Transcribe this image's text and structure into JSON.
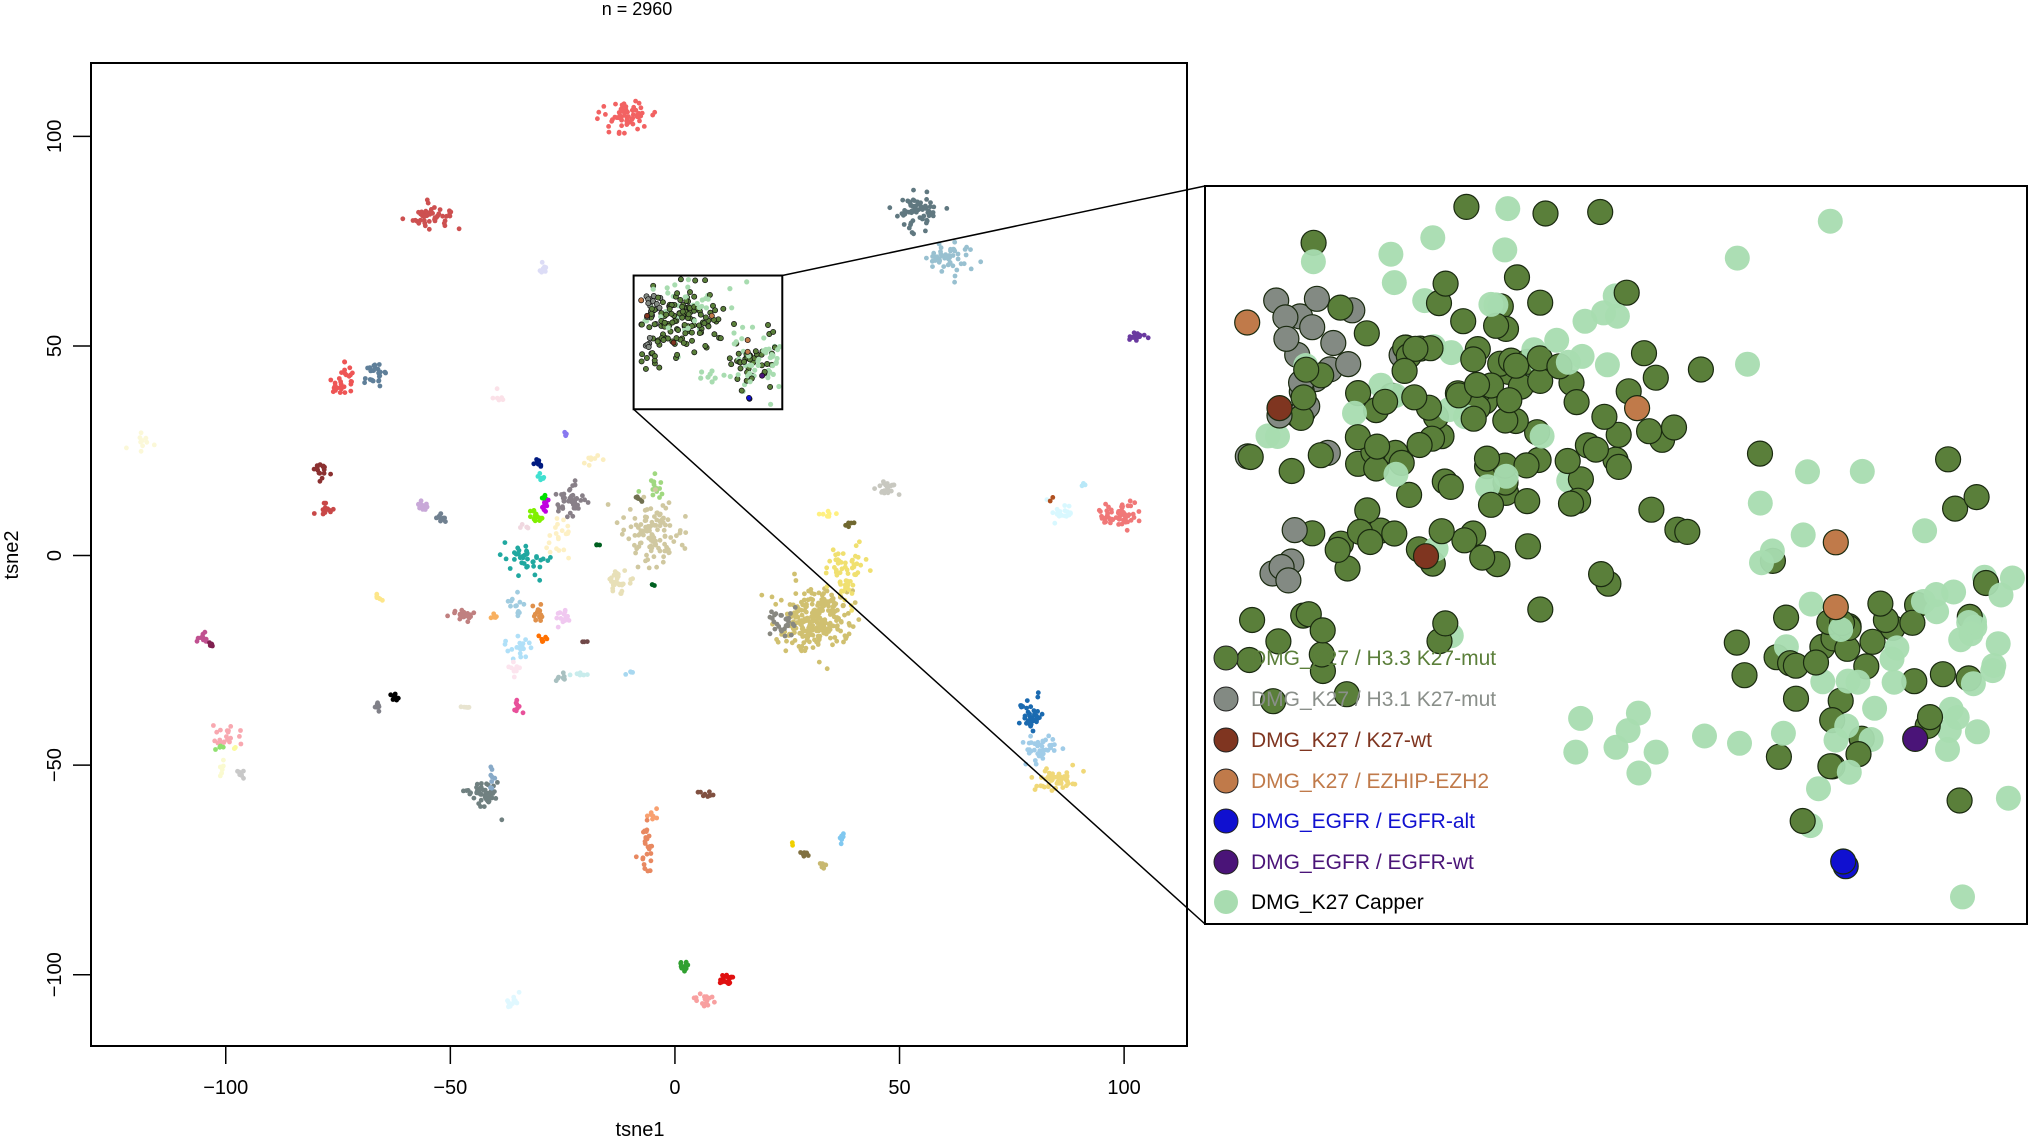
{
  "chart_data": {
    "type": "scatter",
    "title": "n = 2960",
    "xlabel": "tsne1",
    "ylabel": "tsne2",
    "xlim": [
      -130,
      114
    ],
    "ylim": [
      -117,
      117.5
    ],
    "xticks": [
      -100,
      -50,
      0,
      50,
      100
    ],
    "yticks": [
      -100,
      -50,
      0,
      50,
      100
    ],
    "grid": false,
    "clusters": [
      {
        "x": -11,
        "y": 104,
        "sx": 3,
        "sy": 2,
        "n": 60,
        "color": "#f26262"
      },
      {
        "x": -55,
        "y": 81,
        "sx": 2.4,
        "sy": 1.6,
        "n": 50,
        "color": "#cd5050"
      },
      {
        "x": -29,
        "y": 69,
        "sx": 0.8,
        "sy": 0.8,
        "n": 8,
        "color": "#dcdcf6"
      },
      {
        "x": -74,
        "y": 42,
        "sx": 1.5,
        "sy": 3,
        "n": 30,
        "color": "#ee5555"
      },
      {
        "x": -67,
        "y": 43,
        "sx": 1.3,
        "sy": 1.2,
        "n": 25,
        "color": "#5f7f99"
      },
      {
        "x": -39,
        "y": 38,
        "sx": 0.7,
        "sy": 1,
        "n": 6,
        "color": "#fbe1e8"
      },
      {
        "x": -119,
        "y": 27,
        "sx": 1.2,
        "sy": 1.2,
        "n": 10,
        "color": "#fbf8d8"
      },
      {
        "x": -79,
        "y": 20,
        "sx": 0.9,
        "sy": 0.9,
        "n": 15,
        "color": "#8b3030"
      },
      {
        "x": -78,
        "y": 11,
        "sx": 1,
        "sy": 0.8,
        "n": 15,
        "color": "#c84848"
      },
      {
        "x": -56,
        "y": 12,
        "sx": 1,
        "sy": 0.7,
        "n": 12,
        "color": "#c8a8d8"
      },
      {
        "x": -52,
        "y": 9,
        "sx": 0.7,
        "sy": 0.6,
        "n": 10,
        "color": "#708090"
      },
      {
        "x": -25,
        "y": 29,
        "sx": 0.5,
        "sy": 0.4,
        "n": 4,
        "color": "#8878f0"
      },
      {
        "x": -30.5,
        "y": 22,
        "sx": 0.4,
        "sy": 0.5,
        "n": 8,
        "color": "#001a80"
      },
      {
        "x": -30,
        "y": 18.5,
        "sx": 0.4,
        "sy": 0.4,
        "n": 6,
        "color": "#40e0d0"
      },
      {
        "x": -29,
        "y": 14,
        "sx": 0.3,
        "sy": 0.4,
        "n": 6,
        "color": "#00e000"
      },
      {
        "x": -29,
        "y": 12,
        "sx": 0.4,
        "sy": 1,
        "n": 8,
        "color": "#c000e0"
      },
      {
        "x": -31,
        "y": 9.6,
        "sx": 1,
        "sy": 1,
        "n": 15,
        "color": "#80f000"
      },
      {
        "x": -23.6,
        "y": 13,
        "sx": 1.6,
        "sy": 1.6,
        "n": 40,
        "color": "#888088"
      },
      {
        "x": -18,
        "y": 23,
        "sx": 1.2,
        "sy": 0.6,
        "n": 8,
        "color": "#fbeec0"
      },
      {
        "x": -25.6,
        "y": 5,
        "sx": 1.4,
        "sy": 2.5,
        "n": 20,
        "color": "#fdf0c4"
      },
      {
        "x": -33,
        "y": 7,
        "sx": 1.2,
        "sy": 0.6,
        "n": 5,
        "color": "#f0d8e0"
      },
      {
        "x": -4.3,
        "y": 16,
        "sx": 1.3,
        "sy": 1.2,
        "n": 15,
        "color": "#a0d880"
      },
      {
        "x": -8,
        "y": 13.6,
        "sx": 0.7,
        "sy": 0.5,
        "n": 6,
        "color": "#707050"
      },
      {
        "x": -5,
        "y": 5,
        "sx": 3.2,
        "sy": 4.2,
        "n": 110,
        "color": "#d0c8a0"
      },
      {
        "x": -12,
        "y": -6.5,
        "sx": 1.8,
        "sy": 1.6,
        "n": 30,
        "color": "#e8e0b8"
      },
      {
        "x": -17,
        "y": 2.5,
        "sx": 0.3,
        "sy": 0.2,
        "n": 3,
        "color": "#006020"
      },
      {
        "x": -5,
        "y": -7,
        "sx": 0.3,
        "sy": 0.2,
        "n": 3,
        "color": "#006020"
      },
      {
        "x": -33.4,
        "y": -1,
        "sx": 2,
        "sy": 2,
        "n": 40,
        "color": "#20a8a0"
      },
      {
        "x": -47,
        "y": -14,
        "sx": 1.2,
        "sy": 0.9,
        "n": 20,
        "color": "#c08080"
      },
      {
        "x": -40.6,
        "y": -15,
        "sx": 0.5,
        "sy": 0.5,
        "n": 6,
        "color": "#f8b060"
      },
      {
        "x": -35.4,
        "y": -12,
        "sx": 1,
        "sy": 1.4,
        "n": 15,
        "color": "#a0cce0"
      },
      {
        "x": -30.5,
        "y": -14,
        "sx": 0.9,
        "sy": 1.2,
        "n": 15,
        "color": "#e0904a"
      },
      {
        "x": -24.8,
        "y": -15,
        "sx": 1,
        "sy": 0.9,
        "n": 15,
        "color": "#f0c8f0"
      },
      {
        "x": -35,
        "y": -22,
        "sx": 1.8,
        "sy": 1.2,
        "n": 20,
        "color": "#b0e0f8"
      },
      {
        "x": -29.4,
        "y": -20,
        "sx": 0.4,
        "sy": 0.6,
        "n": 6,
        "color": "#ff7000"
      },
      {
        "x": -20,
        "y": -20.5,
        "sx": 0.4,
        "sy": 0.2,
        "n": 3,
        "color": "#704848"
      },
      {
        "x": -35.7,
        "y": -28,
        "sx": 0.8,
        "sy": 2,
        "n": 10,
        "color": "#fce4ee"
      },
      {
        "x": -25.6,
        "y": -29,
        "sx": 0.9,
        "sy": 0.4,
        "n": 8,
        "color": "#a8c0c0"
      },
      {
        "x": -21.6,
        "y": -28.5,
        "sx": 0.9,
        "sy": 0.4,
        "n": 6,
        "color": "#c8ecec"
      },
      {
        "x": -10,
        "y": -28,
        "sx": 0.4,
        "sy": 0.4,
        "n": 4,
        "color": "#a8d8f0"
      },
      {
        "x": -46.7,
        "y": -36,
        "sx": 0.5,
        "sy": 0.5,
        "n": 5,
        "color": "#e8e4d0"
      },
      {
        "x": -35,
        "y": -36,
        "sx": 0.5,
        "sy": 0.9,
        "n": 8,
        "color": "#e8509a"
      },
      {
        "x": -66,
        "y": -36,
        "sx": 0.6,
        "sy": 0.7,
        "n": 8,
        "color": "#808088"
      },
      {
        "x": -62,
        "y": -34,
        "sx": 0.6,
        "sy": 0.5,
        "n": 8,
        "color": "#000000"
      },
      {
        "x": -65.7,
        "y": -10,
        "sx": 0.5,
        "sy": 0.5,
        "n": 6,
        "color": "#fde68a"
      },
      {
        "x": -105,
        "y": -19.5,
        "sx": 0.8,
        "sy": 0.8,
        "n": 12,
        "color": "#c05090"
      },
      {
        "x": -103,
        "y": -21,
        "sx": 0.5,
        "sy": 0.5,
        "n": 5,
        "color": "#802050"
      },
      {
        "x": -99.4,
        "y": -43.5,
        "sx": 1.5,
        "sy": 1.6,
        "n": 20,
        "color": "#f8a8b0"
      },
      {
        "x": -101,
        "y": -46,
        "sx": 0.4,
        "sy": 0.5,
        "n": 4,
        "color": "#90e070"
      },
      {
        "x": -98,
        "y": -46,
        "sx": 0.3,
        "sy": 0.4,
        "n": 3,
        "color": "#fafaa0"
      },
      {
        "x": -101,
        "y": -50,
        "sx": 0.6,
        "sy": 1.2,
        "n": 6,
        "color": "#fafad0"
      },
      {
        "x": -96.8,
        "y": -52,
        "sx": 0.5,
        "sy": 0.5,
        "n": 8,
        "color": "#c8c8c8"
      },
      {
        "x": -42.6,
        "y": -57,
        "sx": 2,
        "sy": 2,
        "n": 50,
        "color": "#708080"
      },
      {
        "x": -40.6,
        "y": -51.6,
        "sx": 0.6,
        "sy": 1.4,
        "n": 8,
        "color": "#88aac8"
      },
      {
        "x": -5.2,
        "y": -62,
        "sx": 0.5,
        "sy": 0.8,
        "n": 8,
        "color": "#f8a070"
      },
      {
        "x": -6.3,
        "y": -69,
        "sx": 0.8,
        "sy": 3,
        "n": 25,
        "color": "#e88860"
      },
      {
        "x": 7,
        "y": -57,
        "sx": 0.9,
        "sy": 0.6,
        "n": 8,
        "color": "#805040"
      },
      {
        "x": -36.6,
        "y": -106,
        "sx": 0.7,
        "sy": 1,
        "n": 12,
        "color": "#e0f8ff"
      },
      {
        "x": 1.7,
        "y": -98,
        "sx": 0.6,
        "sy": 0.9,
        "n": 12,
        "color": "#30a030"
      },
      {
        "x": 11.5,
        "y": -101,
        "sx": 0.8,
        "sy": 0.9,
        "n": 20,
        "color": "#e01010"
      },
      {
        "x": 6.6,
        "y": -106,
        "sx": 1.2,
        "sy": 1.2,
        "n": 15,
        "color": "#f8a0a0"
      },
      {
        "x": 26,
        "y": -68.6,
        "sx": 0.3,
        "sy": 0.3,
        "n": 2,
        "color": "#f0d000"
      },
      {
        "x": 29,
        "y": -71.4,
        "sx": 0.8,
        "sy": 0.6,
        "n": 8,
        "color": "#807040"
      },
      {
        "x": 32.9,
        "y": -74,
        "sx": 0.4,
        "sy": 0.7,
        "n": 6,
        "color": "#c8b870"
      },
      {
        "x": 37,
        "y": -67.7,
        "sx": 0.4,
        "sy": 0.7,
        "n": 6,
        "color": "#80c8f0"
      },
      {
        "x": 31,
        "y": -15,
        "sx": 4,
        "sy": 4,
        "n": 250,
        "color": "#d0c070"
      },
      {
        "x": 24.5,
        "y": -16,
        "sx": 2.2,
        "sy": 1.6,
        "n": 30,
        "color": "#888880"
      },
      {
        "x": 38,
        "y": -3.4,
        "sx": 2.2,
        "sy": 3,
        "n": 60,
        "color": "#f0e070"
      },
      {
        "x": 34,
        "y": 9.6,
        "sx": 1,
        "sy": 0.5,
        "n": 8,
        "color": "#fff080"
      },
      {
        "x": 39,
        "y": 8,
        "sx": 0.6,
        "sy": 0.8,
        "n": 5,
        "color": "#706830"
      },
      {
        "x": 47,
        "y": 16,
        "sx": 1,
        "sy": 1,
        "n": 20,
        "color": "#c8c8c0"
      },
      {
        "x": 54.8,
        "y": 82.5,
        "sx": 2.4,
        "sy": 2.2,
        "n": 60,
        "color": "#607880"
      },
      {
        "x": 60.8,
        "y": 70.8,
        "sx": 2.6,
        "sy": 1.6,
        "n": 50,
        "color": "#98c0d0"
      },
      {
        "x": 102.6,
        "y": 52.2,
        "sx": 0.8,
        "sy": 0.6,
        "n": 20,
        "color": "#6a3aa0"
      },
      {
        "x": 86,
        "y": 10.5,
        "sx": 1.6,
        "sy": 1.4,
        "n": 20,
        "color": "#d8f8ff"
      },
      {
        "x": 99,
        "y": 9.6,
        "sx": 2.2,
        "sy": 1.4,
        "n": 60,
        "color": "#f07878"
      },
      {
        "x": 84,
        "y": 13.6,
        "sx": 0.4,
        "sy": 0.5,
        "n": 2,
        "color": "#b05020"
      },
      {
        "x": 91,
        "y": 17,
        "sx": 0.3,
        "sy": 0.2,
        "n": 3,
        "color": "#b8e8f8"
      },
      {
        "x": 79,
        "y": -38,
        "sx": 1.4,
        "sy": 1.8,
        "n": 40,
        "color": "#1a6ab0"
      },
      {
        "x": 81,
        "y": -46,
        "sx": 2,
        "sy": 1.6,
        "n": 40,
        "color": "#a0cce8"
      },
      {
        "x": 84.4,
        "y": -53.5,
        "sx": 2.4,
        "sy": 1.4,
        "n": 50,
        "color": "#f0d878"
      }
    ],
    "zoom_region": {
      "xlim": [
        -9.2,
        23.9
      ],
      "ylim": [
        34.9,
        66.8
      ]
    },
    "inset": {
      "groups": [
        {
          "label": "DMG_K27 / H3.3 K27-mut",
          "color": "#5a7f3a",
          "text_color": "#5b7f3a",
          "clusters": [
            {
              "x": 1.5,
              "y": 56,
              "sx": 4.5,
              "sy": 4,
              "n": 130
            },
            {
              "x": 18.5,
              "y": 46,
              "sx": 3,
              "sy": 3.5,
              "n": 45
            },
            {
              "x": -5,
              "y": 47.5,
              "sx": 2,
              "sy": 1.5,
              "n": 10
            }
          ]
        },
        {
          "label": "DMG_K27 / H3.1 K27-mut",
          "color": "#838a83",
          "text_color": "#8a8f8a",
          "clusters": [
            {
              "x": -5.5,
              "y": 59,
              "sx": 1.3,
              "sy": 2.2,
              "n": 22
            },
            {
              "x": -6,
              "y": 51,
              "sx": 0.6,
              "sy": 1,
              "n": 5
            }
          ]
        },
        {
          "label": "DMG_K27 / K27-wt",
          "color": "#7f3520",
          "text_color": "#7f3520",
          "points": [
            [
              -6.2,
              57.2
            ],
            [
              -0.3,
              50.8
            ]
          ]
        },
        {
          "label": "DMG_K27 / EZHIP-EZH2",
          "color": "#c07a4a",
          "text_color": "#c07a4a",
          "points": [
            [
              -7.5,
              60.9
            ],
            [
              8.2,
              57.2
            ],
            [
              16.2,
              51.4
            ],
            [
              16.2,
              48.6
            ]
          ]
        },
        {
          "label": "DMG_EGFR / EGFR-alt",
          "color": "#1010d0",
          "text_color": "#1010d0",
          "points": [
            [
              16.5,
              37.6
            ],
            [
              16.6,
              37.4
            ]
          ]
        },
        {
          "label": "DMG_EGFR / EGFR-wt",
          "color": "#4a1478",
          "text_color": "#4a1478",
          "points": [
            [
              19.4,
              42.9
            ]
          ]
        },
        {
          "label": "DMG_K27 Capper",
          "color": "#a8dcb0",
          "text_color": "#000000",
          "clusters": [
            {
              "x": 3,
              "y": 58,
              "sx": 6,
              "sy": 5,
              "n": 50
            },
            {
              "x": 19,
              "y": 46,
              "sx": 3.5,
              "sy": 3,
              "n": 45
            },
            {
              "x": 9,
              "y": 43,
              "sx": 3,
              "sy": 2,
              "n": 10
            }
          ]
        }
      ]
    }
  }
}
